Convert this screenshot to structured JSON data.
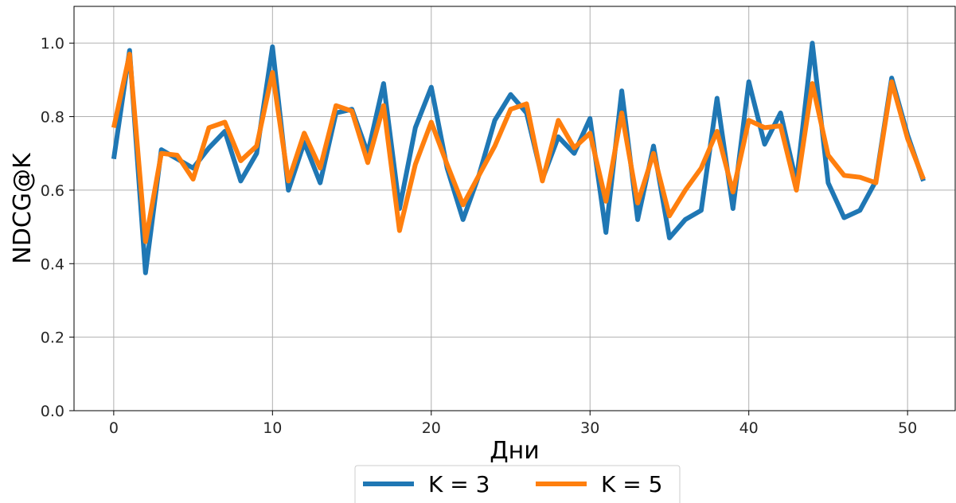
{
  "chart_data": {
    "type": "line",
    "xlabel": "Дни",
    "ylabel": "NDCG@K",
    "xlim": [
      -2.5,
      53
    ],
    "ylim": [
      0.0,
      1.1
    ],
    "xticks": [
      0,
      10,
      20,
      30,
      40,
      50
    ],
    "yticks": [
      0.0,
      0.2,
      0.4,
      0.6,
      0.8,
      1.0
    ],
    "xtick_labels": [
      "0",
      "10",
      "20",
      "30",
      "40",
      "50"
    ],
    "ytick_labels": [
      "0.0",
      "0.2",
      "0.4",
      "0.6",
      "0.8",
      "1.0"
    ],
    "grid": true,
    "legend_position": "bottom-center-outside",
    "x": [
      0,
      1,
      2,
      3,
      4,
      5,
      6,
      7,
      8,
      9,
      10,
      11,
      12,
      13,
      14,
      15,
      16,
      17,
      18,
      19,
      20,
      21,
      22,
      23,
      24,
      25,
      26,
      27,
      28,
      29,
      30,
      31,
      32,
      33,
      34,
      35,
      36,
      37,
      38,
      39,
      40,
      41,
      42,
      43,
      44,
      45,
      46,
      47,
      48,
      49,
      50,
      51
    ],
    "series": [
      {
        "name": "K = 3",
        "color": "#1f77b4",
        "values": [
          0.685,
          0.98,
          0.375,
          0.71,
          0.685,
          0.66,
          0.715,
          0.76,
          0.625,
          0.7,
          0.99,
          0.6,
          0.73,
          0.62,
          0.81,
          0.82,
          0.7,
          0.89,
          0.55,
          0.77,
          0.88,
          0.66,
          0.52,
          0.64,
          0.79,
          0.86,
          0.81,
          0.63,
          0.745,
          0.7,
          0.795,
          0.485,
          0.87,
          0.52,
          0.72,
          0.47,
          0.52,
          0.545,
          0.85,
          0.55,
          0.895,
          0.725,
          0.81,
          0.62,
          1.0,
          0.62,
          0.525,
          0.545,
          0.625,
          0.905,
          0.75,
          0.625
        ]
      },
      {
        "name": "K = 5",
        "color": "#ff7f0e",
        "values": [
          0.77,
          0.97,
          0.46,
          0.7,
          0.695,
          0.63,
          0.77,
          0.785,
          0.68,
          0.72,
          0.92,
          0.625,
          0.755,
          0.66,
          0.83,
          0.815,
          0.675,
          0.83,
          0.49,
          0.67,
          0.785,
          0.67,
          0.56,
          0.64,
          0.72,
          0.82,
          0.835,
          0.625,
          0.79,
          0.715,
          0.755,
          0.57,
          0.81,
          0.565,
          0.7,
          0.53,
          0.6,
          0.66,
          0.76,
          0.595,
          0.79,
          0.77,
          0.775,
          0.6,
          0.89,
          0.695,
          0.64,
          0.635,
          0.62,
          0.895,
          0.74,
          0.63
        ]
      }
    ]
  }
}
